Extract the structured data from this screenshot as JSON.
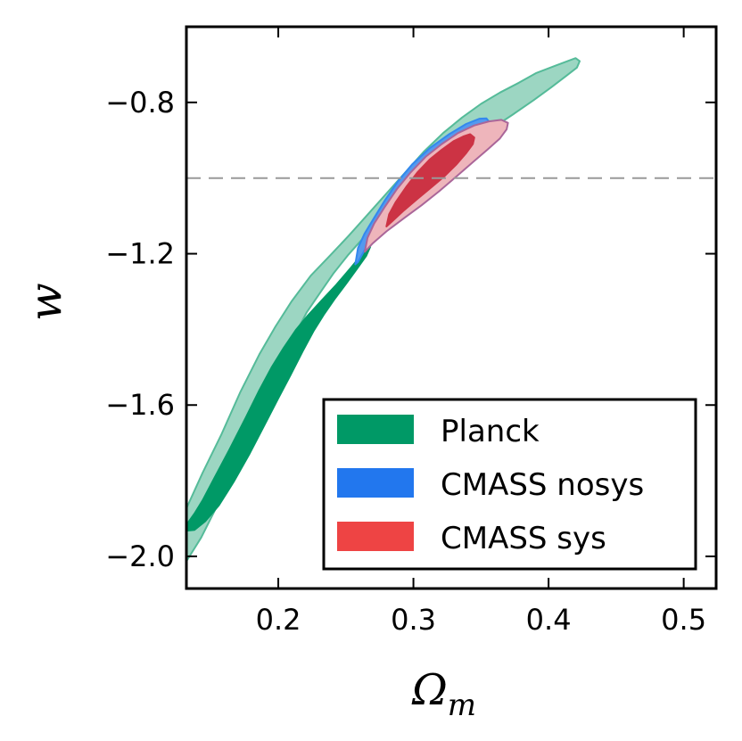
{
  "chart_data": {
    "type": "contour",
    "title": "",
    "xlabel": "Ω",
    "xlabel_subscript": "m",
    "ylabel": "w",
    "xlim": [
      0.132,
      0.524
    ],
    "ylim": [
      -2.085,
      -0.6
    ],
    "xticks": [
      {
        "value": 0.2,
        "label": "0.2"
      },
      {
        "value": 0.3,
        "label": "0.3"
      },
      {
        "value": 0.4,
        "label": "0.4"
      },
      {
        "value": 0.5,
        "label": "0.5"
      }
    ],
    "yticks": [
      {
        "value": -0.8,
        "label": "−0.8"
      },
      {
        "value": -1.2,
        "label": "−1.2"
      },
      {
        "value": -1.6,
        "label": "−1.6"
      },
      {
        "value": -2.0,
        "label": "−2.0"
      }
    ],
    "reference_line": {
      "axis": "y",
      "value": -1.0,
      "style": "dashed",
      "color": "#999999"
    },
    "legend": {
      "position": "lower-right",
      "entries": [
        {
          "label": "Planck",
          "color": "#009966"
        },
        {
          "label": "CMASS nosys",
          "color": "#2277ee"
        },
        {
          "label": "CMASS sys",
          "color": "#ee4444"
        }
      ]
    },
    "series": [
      {
        "name": "Planck",
        "level": "95%",
        "fill": "#9cd6c2",
        "stroke": "#55bb99",
        "points": [
          [
            0.132,
            -1.873
          ],
          [
            0.144,
            -1.779
          ],
          [
            0.158,
            -1.677
          ],
          [
            0.172,
            -1.565
          ],
          [
            0.186,
            -1.466
          ],
          [
            0.198,
            -1.392
          ],
          [
            0.21,
            -1.325
          ],
          [
            0.224,
            -1.258
          ],
          [
            0.238,
            -1.206
          ],
          [
            0.252,
            -1.153
          ],
          [
            0.266,
            -1.097
          ],
          [
            0.28,
            -1.041
          ],
          [
            0.294,
            -0.985
          ],
          [
            0.308,
            -0.929
          ],
          [
            0.322,
            -0.881
          ],
          [
            0.336,
            -0.84
          ],
          [
            0.35,
            -0.804
          ],
          [
            0.364,
            -0.774
          ],
          [
            0.378,
            -0.748
          ],
          [
            0.391,
            -0.722
          ],
          [
            0.405,
            -0.703
          ],
          [
            0.42,
            -0.683
          ],
          [
            0.423,
            -0.691
          ],
          [
            0.421,
            -0.708
          ],
          [
            0.413,
            -0.73
          ],
          [
            0.402,
            -0.76
          ],
          [
            0.389,
            -0.794
          ],
          [
            0.374,
            -0.831
          ],
          [
            0.358,
            -0.869
          ],
          [
            0.341,
            -0.913
          ],
          [
            0.325,
            -0.954
          ],
          [
            0.31,
            -0.996
          ],
          [
            0.295,
            -1.041
          ],
          [
            0.28,
            -1.09
          ],
          [
            0.266,
            -1.146
          ],
          [
            0.252,
            -1.202
          ],
          [
            0.241,
            -1.251
          ],
          [
            0.231,
            -1.303
          ],
          [
            0.221,
            -1.355
          ],
          [
            0.211,
            -1.423
          ],
          [
            0.2,
            -1.509
          ],
          [
            0.189,
            -1.6
          ],
          [
            0.178,
            -1.693
          ],
          [
            0.166,
            -1.786
          ],
          [
            0.154,
            -1.872
          ],
          [
            0.143,
            -1.95
          ],
          [
            0.132,
            -2.013
          ]
        ]
      },
      {
        "name": "Planck",
        "level": "68%",
        "fill": "#009966",
        "stroke": "#009966",
        "points": [
          [
            0.132,
            -1.917
          ],
          [
            0.138,
            -1.887
          ],
          [
            0.144,
            -1.852
          ],
          [
            0.153,
            -1.791
          ],
          [
            0.164,
            -1.717
          ],
          [
            0.176,
            -1.633
          ],
          [
            0.186,
            -1.561
          ],
          [
            0.195,
            -1.501
          ],
          [
            0.204,
            -1.449
          ],
          [
            0.213,
            -1.402
          ],
          [
            0.222,
            -1.363
          ],
          [
            0.232,
            -1.324
          ],
          [
            0.243,
            -1.282
          ],
          [
            0.254,
            -1.236
          ],
          [
            0.262,
            -1.201
          ],
          [
            0.268,
            -1.182
          ],
          [
            0.265,
            -1.206
          ],
          [
            0.258,
            -1.241
          ],
          [
            0.25,
            -1.28
          ],
          [
            0.242,
            -1.318
          ],
          [
            0.234,
            -1.359
          ],
          [
            0.226,
            -1.405
          ],
          [
            0.218,
            -1.458
          ],
          [
            0.209,
            -1.521
          ],
          [
            0.2,
            -1.582
          ],
          [
            0.19,
            -1.651
          ],
          [
            0.179,
            -1.727
          ],
          [
            0.167,
            -1.803
          ],
          [
            0.156,
            -1.865
          ],
          [
            0.146,
            -1.907
          ],
          [
            0.138,
            -1.93
          ],
          [
            0.132,
            -1.932
          ]
        ]
      },
      {
        "name": "CMASS nosys",
        "level": "95%",
        "fill": "#5599ee",
        "stroke": "#3388ee",
        "points": [
          [
            0.257,
            -1.228
          ],
          [
            0.259,
            -1.185
          ],
          [
            0.264,
            -1.146
          ],
          [
            0.271,
            -1.105
          ],
          [
            0.279,
            -1.058
          ],
          [
            0.288,
            -1.011
          ],
          [
            0.299,
            -0.964
          ],
          [
            0.312,
            -0.921
          ],
          [
            0.326,
            -0.885
          ],
          [
            0.339,
            -0.857
          ],
          [
            0.349,
            -0.843
          ],
          [
            0.354,
            -0.842
          ],
          [
            0.357,
            -0.855
          ],
          [
            0.355,
            -0.873
          ],
          [
            0.347,
            -0.903
          ],
          [
            0.335,
            -0.94
          ],
          [
            0.321,
            -0.979
          ],
          [
            0.307,
            -1.019
          ],
          [
            0.294,
            -1.057
          ],
          [
            0.282,
            -1.099
          ],
          [
            0.272,
            -1.144
          ],
          [
            0.264,
            -1.19
          ],
          [
            0.259,
            -1.222
          ],
          [
            0.257,
            -1.228
          ]
        ]
      },
      {
        "name": "CMASS sys",
        "level": "95%",
        "fill": "#eeb5bb",
        "stroke": "#aa6699",
        "points": [
          [
            0.264,
            -1.195
          ],
          [
            0.266,
            -1.158
          ],
          [
            0.271,
            -1.12
          ],
          [
            0.279,
            -1.075
          ],
          [
            0.288,
            -1.028
          ],
          [
            0.298,
            -0.985
          ],
          [
            0.309,
            -0.944
          ],
          [
            0.321,
            -0.91
          ],
          [
            0.333,
            -0.881
          ],
          [
            0.345,
            -0.861
          ],
          [
            0.356,
            -0.85
          ],
          [
            0.365,
            -0.846
          ],
          [
            0.37,
            -0.854
          ],
          [
            0.369,
            -0.871
          ],
          [
            0.364,
            -0.895
          ],
          [
            0.355,
            -0.924
          ],
          [
            0.344,
            -0.958
          ],
          [
            0.332,
            -0.995
          ],
          [
            0.319,
            -1.035
          ],
          [
            0.306,
            -1.072
          ],
          [
            0.293,
            -1.106
          ],
          [
            0.28,
            -1.141
          ],
          [
            0.27,
            -1.172
          ],
          [
            0.264,
            -1.195
          ]
        ]
      },
      {
        "name": "CMASS sys",
        "level": "68%",
        "fill": "#cc3344",
        "stroke": "#cc3344",
        "points": [
          [
            0.28,
            -1.128
          ],
          [
            0.282,
            -1.096
          ],
          [
            0.287,
            -1.063
          ],
          [
            0.295,
            -1.022
          ],
          [
            0.303,
            -0.985
          ],
          [
            0.312,
            -0.951
          ],
          [
            0.321,
            -0.925
          ],
          [
            0.33,
            -0.902
          ],
          [
            0.337,
            -0.89
          ],
          [
            0.342,
            -0.884
          ],
          [
            0.345,
            -0.893
          ],
          [
            0.344,
            -0.91
          ],
          [
            0.339,
            -0.934
          ],
          [
            0.332,
            -0.963
          ],
          [
            0.323,
            -0.995
          ],
          [
            0.313,
            -1.025
          ],
          [
            0.303,
            -1.055
          ],
          [
            0.293,
            -1.085
          ],
          [
            0.285,
            -1.112
          ],
          [
            0.28,
            -1.128
          ]
        ]
      }
    ]
  }
}
